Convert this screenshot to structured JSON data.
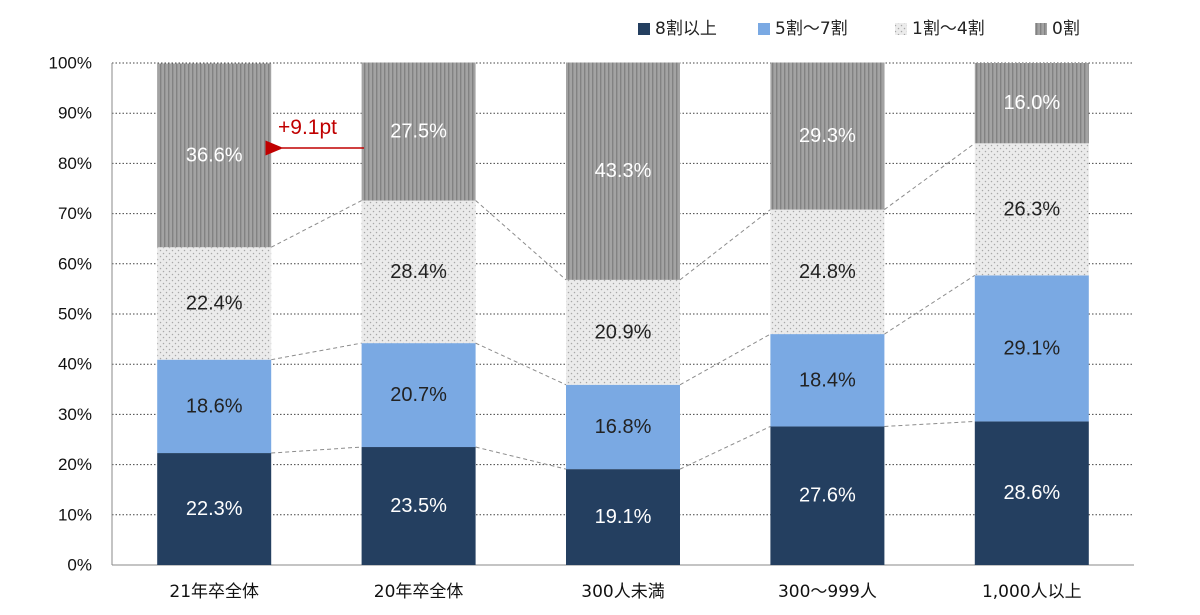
{
  "chart_data": {
    "type": "bar",
    "stacked": true,
    "categories": [
      "21年卒全体",
      "20年卒全体",
      "300人未満",
      "300〜999人",
      "1,000人以上"
    ],
    "series": [
      {
        "name": "8割以上",
        "values": [
          22.3,
          23.5,
          19.1,
          27.6,
          28.6
        ],
        "labels": [
          "22.3%",
          "23.5%",
          "19.1%",
          "27.6%",
          "28.6%"
        ]
      },
      {
        "name": "5割〜7割",
        "values": [
          18.6,
          20.7,
          16.8,
          18.4,
          29.1
        ],
        "labels": [
          "18.6%",
          "20.7%",
          "16.8%",
          "18.4%",
          "29.1%"
        ]
      },
      {
        "name": "1割〜4割",
        "values": [
          22.4,
          28.4,
          20.9,
          24.8,
          26.3
        ],
        "labels": [
          "22.4%",
          "28.4%",
          "20.9%",
          "24.8%",
          "26.3%"
        ]
      },
      {
        "name": "0割",
        "values": [
          36.6,
          27.5,
          43.3,
          29.3,
          16.0
        ],
        "labels": [
          "36.6%",
          "27.5%",
          "43.3%",
          "29.3%",
          "16.0%"
        ]
      }
    ],
    "colors": [
      "#243f60",
      "#7aa9e3",
      "#e8e8e8",
      "#9a9a9a"
    ],
    "yticks": [
      "0%",
      "10%",
      "20%",
      "30%",
      "40%",
      "50%",
      "60%",
      "70%",
      "80%",
      "90%",
      "100%"
    ],
    "ylim": [
      0,
      100
    ],
    "grid": true,
    "legend_position": "top-right",
    "annotation": {
      "text": "+9.1pt",
      "color": "#c00000"
    }
  }
}
